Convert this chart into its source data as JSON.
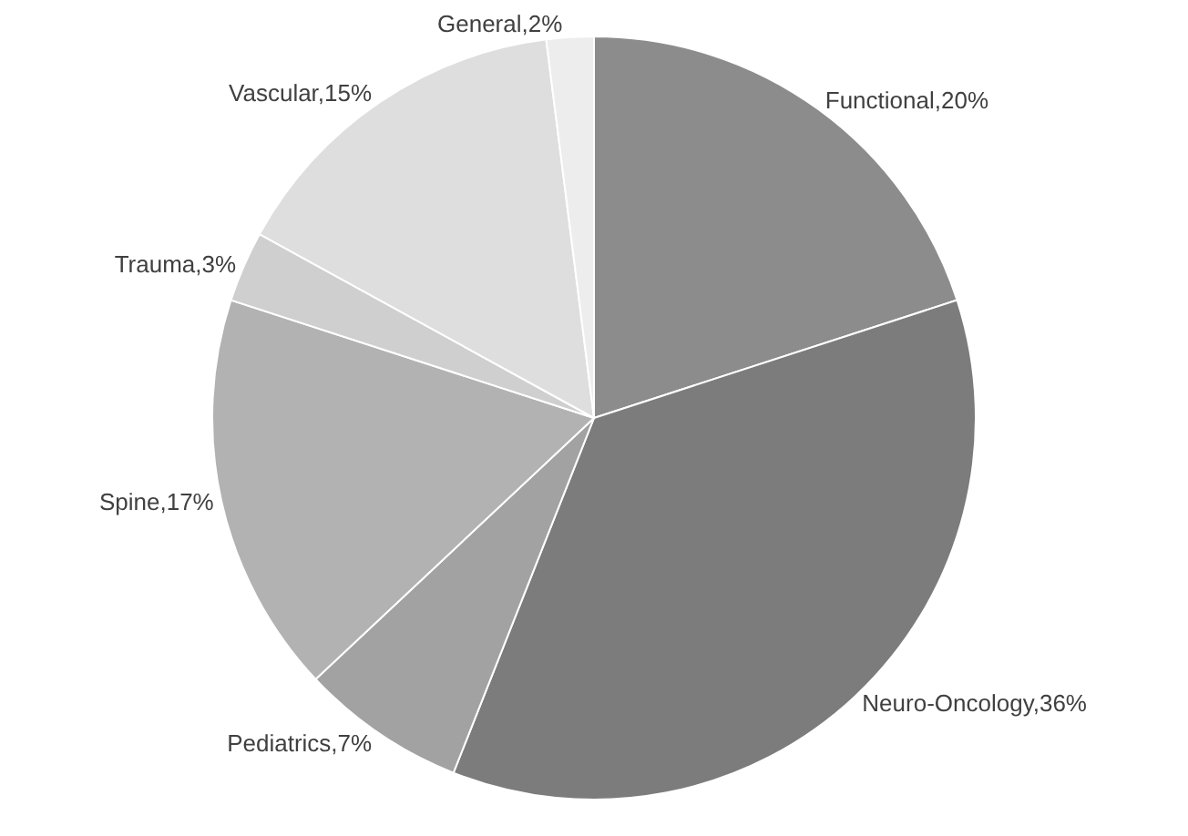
{
  "chart_data": {
    "type": "pie",
    "categories": [
      "Functional",
      "Neuro-Oncology",
      "Pediatrics",
      "Spine",
      "Trauma",
      "Vascular",
      "General"
    ],
    "values": [
      20,
      36,
      7,
      17,
      3,
      15,
      2
    ],
    "value_labels": [
      "20%",
      "36%",
      "7%",
      "17%",
      "3%",
      "15%",
      "2%"
    ],
    "colors": [
      "#8c8c8c",
      "#7c7c7c",
      "#a2a2a2",
      "#b2b2b2",
      "#cfcfcf",
      "#dedede",
      "#ededed"
    ],
    "legend": false
  }
}
